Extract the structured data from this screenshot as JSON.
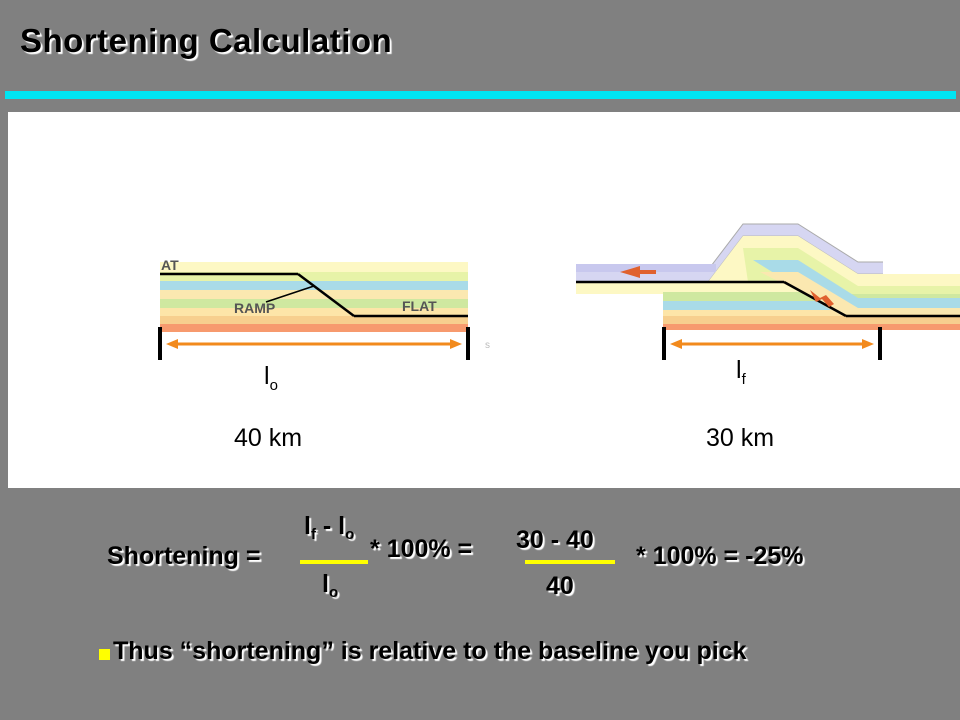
{
  "title": "Shortening Calculation",
  "colors": {
    "accent": "#00e5f2",
    "arrow": "#f28a1d",
    "fraction_line": "#ffff00",
    "bullet": "#ffff00"
  },
  "diagram": {
    "before": {
      "label_main": "l",
      "label_sub": "o",
      "length": "40 km",
      "text_upper": "AT",
      "text_ramp": "RAMP",
      "text_flat": "FLAT"
    },
    "after": {
      "label_main": "l",
      "label_sub": "f",
      "length": "30 km"
    }
  },
  "equation": {
    "lhs": "Shortening =",
    "num_f": "l",
    "num_f_sub": "f",
    "num_minus": " - l",
    "num_o_sub": "o",
    "den": "l",
    "den_sub": "o",
    "mid": "* 100% =",
    "num2": "30 - 40",
    "den2": "40",
    "result": "* 100% = -25%"
  },
  "bullet": {
    "text": "Thus “shortening” is relative to the baseline you pick"
  }
}
